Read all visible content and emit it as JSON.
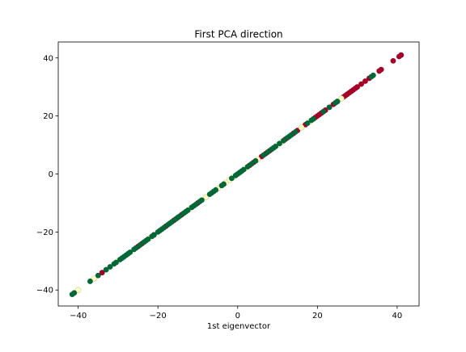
{
  "chart_data": {
    "type": "scatter",
    "title": "First PCA direction",
    "xlabel": "1st eigenvector",
    "ylabel": "",
    "xlim": [
      -45,
      45.5
    ],
    "ylim": [
      -45.5,
      45.5
    ],
    "xticks": [
      -40,
      -20,
      0,
      20,
      40
    ],
    "yticks": [
      -40,
      -20,
      0,
      20,
      40
    ],
    "xtick_labels": [
      "−40",
      "−20",
      "0",
      "20",
      "40"
    ],
    "ytick_labels": [
      "−40",
      "−20",
      "0",
      "20",
      "40"
    ],
    "grid": false,
    "legend": "none",
    "colors": {
      "red": "#a50026",
      "cream": "#ffffbf",
      "green": "#006837"
    },
    "series": [
      {
        "color_key": "red",
        "x": [
          41,
          40.5,
          39,
          36,
          35.5,
          33,
          32,
          31,
          30,
          29.5,
          29,
          28.5,
          28,
          27.5,
          27,
          26.5,
          26,
          25,
          24,
          23,
          22,
          21.5,
          21,
          20.5,
          20,
          19.5,
          19,
          17,
          16,
          15,
          14,
          12,
          8,
          7,
          6,
          5,
          4,
          3,
          -2,
          -5,
          -8,
          -10,
          -12,
          -14,
          -16,
          -18,
          -21,
          -22,
          -24,
          -25,
          -30,
          -34
        ],
        "y": [
          41,
          40.5,
          39,
          36,
          35.5,
          33,
          32,
          31,
          30,
          29.5,
          29,
          28.5,
          28,
          27.5,
          27,
          26.5,
          26,
          25,
          24,
          23,
          22,
          21.5,
          21,
          20.5,
          20,
          19.5,
          19,
          17,
          16,
          15,
          14,
          12,
          8,
          7,
          6,
          5,
          4,
          3,
          -2,
          -5,
          -8,
          -10,
          -12,
          -14,
          -16,
          -18,
          -21,
          -22,
          -24,
          -25,
          -30,
          -34
        ]
      },
      {
        "color_key": "cream",
        "x": [
          -40,
          -36,
          -30,
          -22,
          -15,
          -12,
          -8,
          -5,
          -3,
          -2,
          -1,
          2,
          5,
          10,
          11,
          16,
          18,
          26
        ],
        "y": [
          -40,
          -36,
          -30,
          -22,
          -15,
          -12,
          -8,
          -5,
          -3,
          -2,
          -1,
          2,
          5,
          10,
          11,
          16,
          18,
          26
        ],
        "stroke": "#cccc99"
      },
      {
        "color_key": "green",
        "x": [
          -41.5,
          -41,
          -37,
          -35,
          -33,
          -32,
          -31,
          -30.5,
          -29.5,
          -29,
          -28.5,
          -28,
          -27.5,
          -27,
          -26,
          -25.5,
          -24.5,
          -23.5,
          -23,
          -22.5,
          -21.5,
          -21,
          -20,
          -19.5,
          -19,
          -18.5,
          -17.5,
          -17,
          -16.5,
          -15.5,
          -15,
          -14.5,
          -13.5,
          -13,
          -12.5,
          -11.5,
          -11,
          -10.5,
          -9.5,
          -9,
          -7,
          -6.5,
          -6,
          -5.5,
          -4,
          -3.5,
          -1.5,
          -0.5,
          0,
          0.5,
          1,
          1.5,
          2.5,
          3.5,
          4.5,
          6.5,
          7.5,
          8.5,
          9,
          9.5,
          10.5,
          11.5,
          12.5,
          13,
          13.5,
          14.5,
          17.5,
          18.5,
          19,
          21.5,
          23,
          24.5,
          25,
          33.5,
          34
        ],
        "y": [
          -41.5,
          -41,
          -37,
          -35,
          -33,
          -32,
          -31,
          -30.5,
          -29.5,
          -29,
          -28.5,
          -28,
          -27.5,
          -27,
          -26,
          -25.5,
          -24.5,
          -23.5,
          -23,
          -22.5,
          -21.5,
          -21,
          -20,
          -19.5,
          -19,
          -18.5,
          -17.5,
          -17,
          -16.5,
          -15.5,
          -15,
          -14.5,
          -13.5,
          -13,
          -12.5,
          -11.5,
          -11,
          -10.5,
          -9.5,
          -9,
          -7,
          -6.5,
          -6,
          -5.5,
          -4,
          -3.5,
          -1.5,
          -0.5,
          0,
          0.5,
          1,
          1.5,
          2.5,
          3.5,
          4.5,
          6.5,
          7.5,
          8.5,
          9,
          9.5,
          10.5,
          11.5,
          12.5,
          13,
          13.5,
          14.5,
          17.5,
          18.5,
          19,
          21.5,
          23,
          24.5,
          25,
          33.5,
          34
        ]
      }
    ]
  }
}
